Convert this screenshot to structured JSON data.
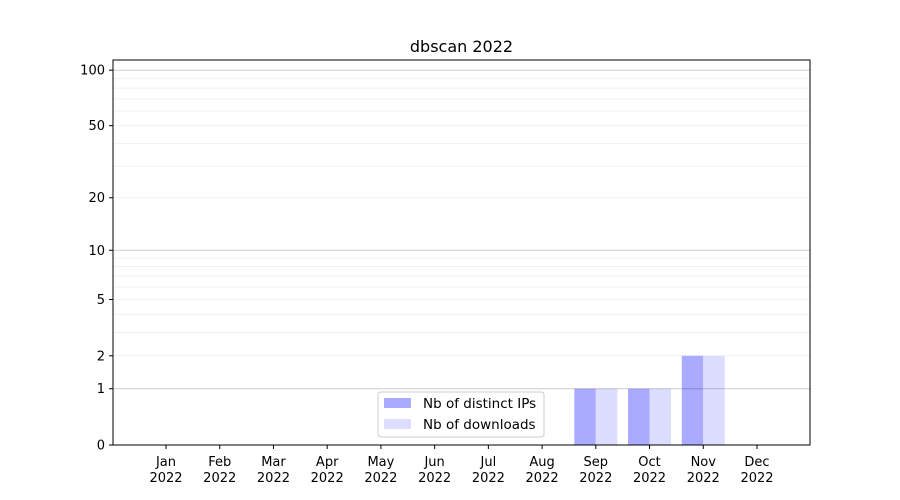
{
  "chart_data": {
    "type": "bar",
    "title": "dbscan 2022",
    "xlabel": "",
    "ylabel": "",
    "y_scale": "log(1+y)",
    "ylim": [
      0,
      113
    ],
    "yticks": [
      0,
      1,
      2,
      5,
      10,
      20,
      50,
      100
    ],
    "ytick_labels": [
      "0",
      "1",
      "2",
      "5",
      "10",
      "20",
      "50",
      "100"
    ],
    "grid": true,
    "legend_placement": "lower-center",
    "categories": [
      "Jan\n2022",
      "Feb\n2022",
      "Mar\n2022",
      "Apr\n2022",
      "May\n2022",
      "Jun\n2022",
      "Jul\n2022",
      "Aug\n2022",
      "Sep\n2022",
      "Oct\n2022",
      "Nov\n2022",
      "Dec\n2022"
    ],
    "category_labels": [
      [
        "Jan",
        "2022"
      ],
      [
        "Feb",
        "2022"
      ],
      [
        "Mar",
        "2022"
      ],
      [
        "Apr",
        "2022"
      ],
      [
        "May",
        "2022"
      ],
      [
        "Jun",
        "2022"
      ],
      [
        "Jul",
        "2022"
      ],
      [
        "Aug",
        "2022"
      ],
      [
        "Sep",
        "2022"
      ],
      [
        "Oct",
        "2022"
      ],
      [
        "Nov",
        "2022"
      ],
      [
        "Dec",
        "2022"
      ]
    ],
    "series": [
      {
        "name": "Nb of distinct IPs",
        "color": "#aaaaff",
        "values": [
          0,
          0,
          0,
          0,
          0,
          0,
          0,
          0,
          1,
          1,
          2,
          0
        ]
      },
      {
        "name": "Nb of downloads",
        "color": "#ddddff",
        "values": [
          0,
          0,
          0,
          0,
          0,
          0,
          0,
          0,
          1,
          1,
          2,
          0
        ]
      }
    ]
  }
}
